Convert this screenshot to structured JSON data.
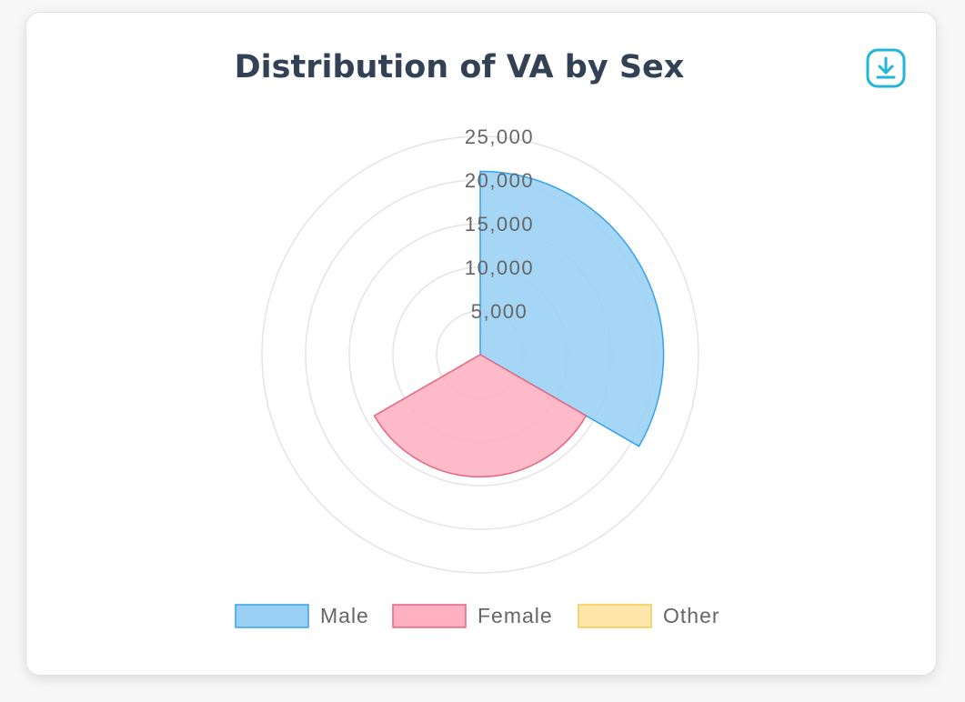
{
  "chart_data": {
    "type": "polarArea",
    "title": "Distribution of VA by Sex",
    "categories": [
      "Male",
      "Female",
      "Other"
    ],
    "values": [
      21000,
      14000,
      0
    ],
    "colors": {
      "Male": {
        "fill": "#9ad0f5",
        "stroke": "#36a2eb"
      },
      "Female": {
        "fill": "#ffb1c1",
        "stroke": "#e8657f"
      },
      "Other": {
        "fill": "#ffe6aa",
        "stroke": "#f5c84f"
      }
    },
    "r_axis": {
      "min": 0,
      "max": 25000,
      "ticks": [
        5000,
        10000,
        15000,
        20000,
        25000
      ],
      "tick_labels": [
        "5,000",
        "10,000",
        "15,000",
        "20,000",
        "25,000"
      ]
    },
    "grid": true,
    "legend_position": "bottom",
    "legend": [
      "Male",
      "Female",
      "Other"
    ]
  },
  "toolbar": {
    "download_icon": "download-icon",
    "accent": "#22b5d8"
  }
}
